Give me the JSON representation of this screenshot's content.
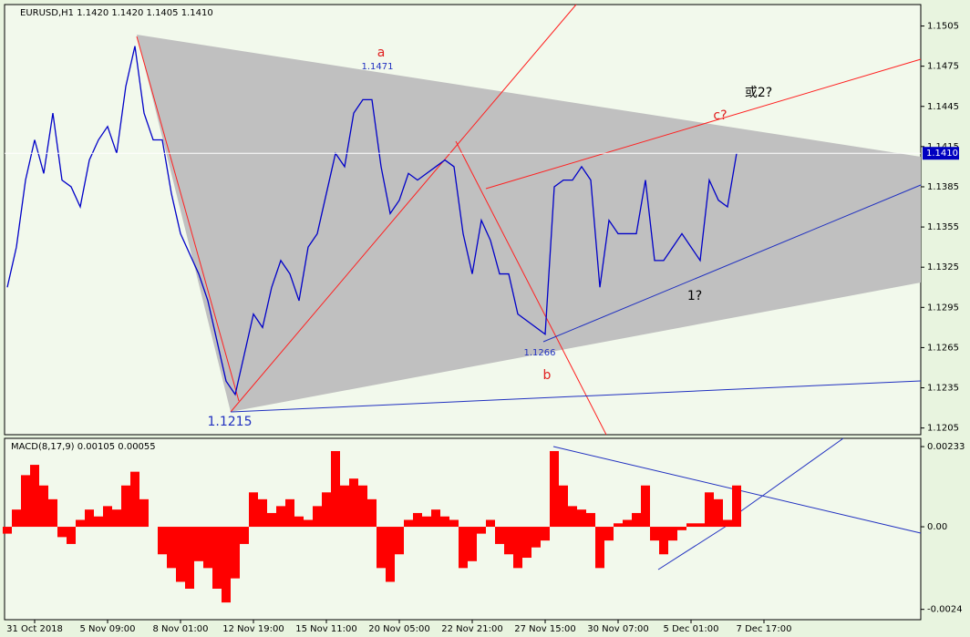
{
  "chart_data": [
    {
      "type": "line",
      "title": "EURUSD,H1  1.1420 1.1420 1.1405 1.1410",
      "categories": [
        null,
        null,
        null,
        "31 Oct 2018",
        null,
        null,
        null,
        null,
        null,
        null,
        null,
        "5 Nov 09:00",
        null,
        null,
        null,
        null,
        null,
        null,
        null,
        "8 Nov 01:00",
        null,
        null,
        null,
        null,
        null,
        null,
        null,
        "12 Nov 19:00",
        null,
        null,
        null,
        null,
        null,
        null,
        null,
        "15 Nov 11:00",
        null,
        null,
        null,
        null,
        null,
        null,
        null,
        "20 Nov 05:00",
        null,
        null,
        null,
        null,
        null,
        null,
        null,
        "22 Nov 21:00",
        null,
        null,
        null,
        null,
        null,
        null,
        null,
        "27 Nov 15:00",
        null,
        null,
        null,
        null,
        null,
        null,
        null,
        "30 Nov 07:00",
        null,
        null,
        null,
        null,
        null,
        null,
        null,
        "5 Dec 01:00",
        null,
        null,
        null,
        null,
        null,
        null,
        null,
        "7 Dec 17:00"
      ],
      "series": [
        {
          "color": "#0000c8",
          "values": [
            1.131,
            1.134,
            1.139,
            1.142,
            1.1395,
            1.144,
            1.139,
            1.1385,
            1.137,
            1.1405,
            1.142,
            1.143,
            1.141,
            1.146,
            1.149,
            1.144,
            1.142,
            1.142,
            1.138,
            1.135,
            1.1335,
            1.132,
            1.13,
            1.127,
            1.124,
            1.123,
            1.126,
            1.129,
            1.128,
            1.131,
            1.133,
            1.132,
            1.13,
            1.134,
            1.135,
            1.138,
            1.141,
            1.14,
            1.144,
            1.145,
            1.145,
            1.14,
            1.1365,
            1.1375,
            1.1395,
            1.139,
            1.1395,
            1.14,
            1.1405,
            1.14,
            1.135,
            1.132,
            1.136,
            1.1345,
            1.132,
            1.132,
            1.129,
            1.1285,
            1.128,
            1.1275,
            1.1385,
            1.139,
            1.139,
            1.14,
            1.139,
            1.131,
            1.136,
            1.135,
            1.135,
            1.135,
            1.139,
            1.133,
            1.133,
            1.134,
            1.135,
            1.134,
            1.133,
            1.139,
            1.1375,
            1.137,
            1.141,
            null,
            null,
            null
          ]
        }
      ],
      "ylim": [
        1.12,
        1.1521
      ],
      "yticks": [
        1.1505,
        1.1475,
        1.1445,
        1.1415,
        1.1385,
        1.1355,
        1.1325,
        1.1295,
        1.1265,
        1.1235,
        1.1205
      ],
      "current_price": {
        "value": 1.141,
        "label": "1.1410"
      },
      "annotations": [
        "a",
        "1.1471",
        "b",
        "1.1266",
        "1.1215",
        "c?",
        "或2?",
        "1?"
      ]
    },
    {
      "type": "bar",
      "title": "MACD(8,17,9) 0.00105 0.00055",
      "color": "#ff0000",
      "values": [
        -0.0002,
        0.0005,
        0.0015,
        0.0018,
        0.0012,
        0.0008,
        -0.0003,
        -0.0005,
        0.0002,
        0.0005,
        0.0003,
        0.0006,
        0.0005,
        0.0012,
        0.0016,
        0.0008,
        0,
        -0.0008,
        -0.0012,
        -0.0016,
        -0.0018,
        -0.001,
        -0.0012,
        -0.0018,
        -0.0022,
        -0.0015,
        -0.0005,
        0.001,
        0.0008,
        0.0004,
        0.0006,
        0.0008,
        0.0003,
        0.0002,
        0.0006,
        0.001,
        0.0022,
        0.0012,
        0.0014,
        0.0012,
        0.0008,
        -0.0012,
        -0.0016,
        -0.0008,
        0.0002,
        0.0004,
        0.0003,
        0.0005,
        0.0003,
        0.0002,
        -0.0012,
        -0.001,
        -0.0002,
        0.0002,
        -0.0005,
        -0.0008,
        -0.0012,
        -0.0009,
        -0.0006,
        -0.0004,
        0.0022,
        0.0012,
        0.0006,
        0.0005,
        0.0004,
        -0.0012,
        -0.0004,
        0.0001,
        0.0002,
        0.0004,
        0.0012,
        -0.0004,
        -0.0008,
        -0.0004,
        -0.0001,
        0.0001,
        0.0001,
        0.001,
        0.0008,
        0.0002,
        0.0012,
        null,
        null,
        null
      ],
      "ylim": [
        -0.0027,
        0.00257
      ],
      "yticks": [
        0.00233,
        {
          "value": 0,
          "label": "0.00"
        },
        -0.0024
      ]
    }
  ]
}
